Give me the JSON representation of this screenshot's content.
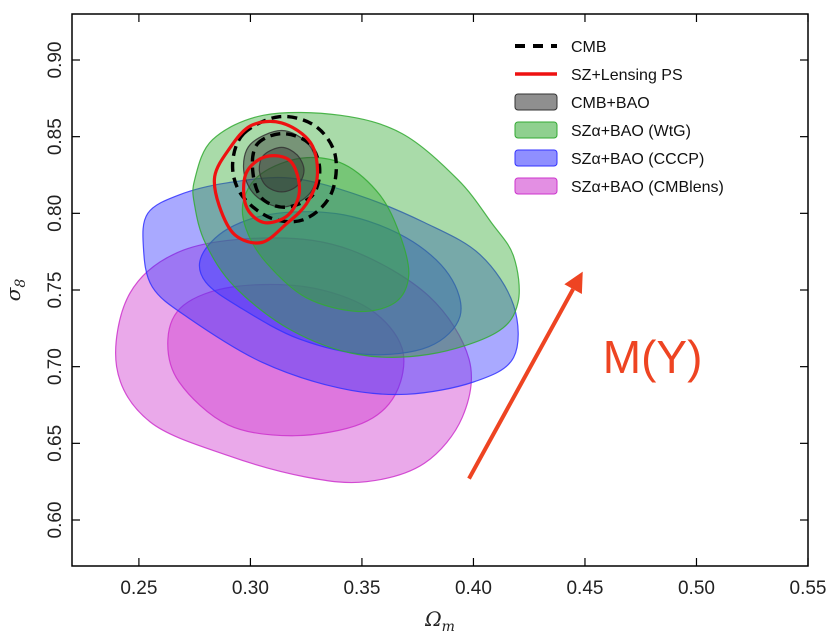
{
  "chart_data": {
    "type": "contour",
    "title": "",
    "xlabel": "Ω",
    "xlabel_sub": "m",
    "ylabel": "σ",
    "ylabel_sub": "8",
    "xlim": [
      0.22,
      0.55
    ],
    "ylim": [
      0.57,
      0.93
    ],
    "xticks": [
      0.25,
      0.3,
      0.35,
      0.4,
      0.45,
      0.5,
      0.55
    ],
    "xtick_labels": [
      "0.25",
      "0.30",
      "0.35",
      "0.40",
      "0.45",
      "0.50",
      "0.55"
    ],
    "yticks": [
      0.6,
      0.65,
      0.7,
      0.75,
      0.8,
      0.85,
      0.9
    ],
    "ytick_labels": [
      "0.60",
      "0.65",
      "0.70",
      "0.75",
      "0.80",
      "0.85",
      "0.90"
    ],
    "grid": false,
    "legend_position": "top-right",
    "series": [
      {
        "name": "SZα+BAO (CMBlens)",
        "kind": "filled",
        "color": "#cc33cc",
        "center": [
          0.318,
          0.715
        ],
        "outer": [
          [
            0.24,
            0.7
          ],
          [
            0.246,
            0.748
          ],
          [
            0.27,
            0.776
          ],
          [
            0.31,
            0.784
          ],
          [
            0.345,
            0.776
          ],
          [
            0.38,
            0.746
          ],
          [
            0.398,
            0.705
          ],
          [
            0.395,
            0.667
          ],
          [
            0.378,
            0.637
          ],
          [
            0.352,
            0.625
          ],
          [
            0.325,
            0.628
          ],
          [
            0.29,
            0.642
          ],
          [
            0.255,
            0.664
          ]
        ],
        "inner": [
          [
            0.263,
            0.718
          ],
          [
            0.27,
            0.74
          ],
          [
            0.292,
            0.752
          ],
          [
            0.325,
            0.752
          ],
          [
            0.353,
            0.738
          ],
          [
            0.368,
            0.712
          ],
          [
            0.365,
            0.682
          ],
          [
            0.35,
            0.663
          ],
          [
            0.32,
            0.655
          ],
          [
            0.29,
            0.662
          ],
          [
            0.268,
            0.69
          ]
        ]
      },
      {
        "name": "SZα+BAO (CCCP)",
        "kind": "filled",
        "color": "#3333ff",
        "center": [
          0.334,
          0.75
        ],
        "outer": [
          [
            0.254,
            0.8
          ],
          [
            0.268,
            0.812
          ],
          [
            0.29,
            0.82
          ],
          [
            0.318,
            0.823
          ],
          [
            0.348,
            0.812
          ],
          [
            0.378,
            0.794
          ],
          [
            0.403,
            0.773
          ],
          [
            0.418,
            0.74
          ],
          [
            0.418,
            0.706
          ],
          [
            0.4,
            0.69
          ],
          [
            0.37,
            0.682
          ],
          [
            0.34,
            0.686
          ],
          [
            0.305,
            0.703
          ],
          [
            0.272,
            0.732
          ],
          [
            0.256,
            0.752
          ],
          [
            0.252,
            0.778
          ]
        ],
        "inner": [
          [
            0.278,
            0.772
          ],
          [
            0.29,
            0.79
          ],
          [
            0.312,
            0.8
          ],
          [
            0.342,
            0.799
          ],
          [
            0.37,
            0.784
          ],
          [
            0.389,
            0.76
          ],
          [
            0.394,
            0.733
          ],
          [
            0.38,
            0.713
          ],
          [
            0.352,
            0.708
          ],
          [
            0.322,
            0.718
          ],
          [
            0.296,
            0.738
          ],
          [
            0.28,
            0.755
          ]
        ]
      },
      {
        "name": "SZα+BAO (WtG)",
        "kind": "filled",
        "color": "#33aa33",
        "center": [
          0.333,
          0.78
        ],
        "outer": [
          [
            0.275,
            0.822
          ],
          [
            0.283,
            0.848
          ],
          [
            0.306,
            0.864
          ],
          [
            0.34,
            0.864
          ],
          [
            0.368,
            0.852
          ],
          [
            0.393,
            0.822
          ],
          [
            0.408,
            0.794
          ],
          [
            0.418,
            0.772
          ],
          [
            0.42,
            0.742
          ],
          [
            0.41,
            0.722
          ],
          [
            0.38,
            0.708
          ],
          [
            0.348,
            0.708
          ],
          [
            0.318,
            0.724
          ],
          [
            0.293,
            0.752
          ],
          [
            0.28,
            0.78
          ],
          [
            0.275,
            0.805
          ]
        ],
        "inner": [
          [
            0.297,
            0.809
          ],
          [
            0.305,
            0.826
          ],
          [
            0.323,
            0.836
          ],
          [
            0.342,
            0.832
          ],
          [
            0.358,
            0.812
          ],
          [
            0.367,
            0.786
          ],
          [
            0.371,
            0.76
          ],
          [
            0.365,
            0.742
          ],
          [
            0.348,
            0.736
          ],
          [
            0.325,
            0.745
          ],
          [
            0.307,
            0.768
          ],
          [
            0.298,
            0.79
          ]
        ]
      },
      {
        "name": "CMB+BAO",
        "kind": "filled",
        "color": "#333333",
        "center": [
          0.314,
          0.83
        ],
        "outer": [
          [
            0.3,
            0.845
          ],
          [
            0.314,
            0.854
          ],
          [
            0.326,
            0.845
          ],
          [
            0.33,
            0.828
          ],
          [
            0.326,
            0.812
          ],
          [
            0.314,
            0.804
          ],
          [
            0.302,
            0.812
          ],
          [
            0.297,
            0.828
          ]
        ],
        "inner": [
          [
            0.306,
            0.838
          ],
          [
            0.314,
            0.843
          ],
          [
            0.321,
            0.838
          ],
          [
            0.324,
            0.828
          ],
          [
            0.321,
            0.818
          ],
          [
            0.314,
            0.814
          ],
          [
            0.307,
            0.818
          ],
          [
            0.304,
            0.828
          ]
        ]
      },
      {
        "name": "CMB",
        "kind": "dashed",
        "color": "#000000",
        "outer": [
          [
            0.297,
            0.852
          ],
          [
            0.313,
            0.863
          ],
          [
            0.329,
            0.857
          ],
          [
            0.338,
            0.838
          ],
          [
            0.336,
            0.812
          ],
          [
            0.324,
            0.796
          ],
          [
            0.309,
            0.797
          ],
          [
            0.296,
            0.812
          ],
          [
            0.292,
            0.832
          ]
        ],
        "inner": [
          [
            0.303,
            0.845
          ],
          [
            0.314,
            0.852
          ],
          [
            0.326,
            0.846
          ],
          [
            0.331,
            0.83
          ],
          [
            0.328,
            0.812
          ],
          [
            0.316,
            0.804
          ],
          [
            0.305,
            0.81
          ],
          [
            0.301,
            0.828
          ]
        ]
      },
      {
        "name": "SZ+Lensing PS",
        "kind": "line",
        "color": "#ee1111",
        "outer": [
          [
            0.29,
            0.841
          ],
          [
            0.3,
            0.857
          ],
          [
            0.314,
            0.859
          ],
          [
            0.327,
            0.846
          ],
          [
            0.33,
            0.824
          ],
          [
            0.325,
            0.806
          ],
          [
            0.316,
            0.793
          ],
          [
            0.305,
            0.781
          ],
          [
            0.293,
            0.786
          ],
          [
            0.286,
            0.805
          ],
          [
            0.284,
            0.824
          ]
        ],
        "inner": [
          [
            0.298,
            0.826
          ],
          [
            0.307,
            0.837
          ],
          [
            0.318,
            0.834
          ],
          [
            0.322,
            0.815
          ],
          [
            0.317,
            0.799
          ],
          [
            0.306,
            0.794
          ],
          [
            0.298,
            0.805
          ]
        ]
      }
    ],
    "legend": [
      {
        "label": "CMB",
        "style": "dashed",
        "color": "#000000"
      },
      {
        "label": "SZ+Lensing PS",
        "style": "line",
        "color": "#ee1111"
      },
      {
        "label": "CMB+BAO",
        "style": "patch",
        "color": "#333333"
      },
      {
        "label": "SZα+BAO (WtG)",
        "style": "patch",
        "color": "#33aa33"
      },
      {
        "label": "SZα+BAO (CCCP)",
        "style": "patch",
        "color": "#3333ff"
      },
      {
        "label": "SZα+BAO (CMBlens)",
        "style": "patch",
        "color": "#cc33cc"
      }
    ],
    "annotations": [
      {
        "text": "M(Y)",
        "color": "#ee4422",
        "kind": "text",
        "at": [
          0.458,
          0.696
        ]
      },
      {
        "text": "",
        "kind": "arrow",
        "color": "#ee4422",
        "from": [
          0.398,
          0.627
        ],
        "to": [
          0.449,
          0.762
        ]
      }
    ]
  }
}
